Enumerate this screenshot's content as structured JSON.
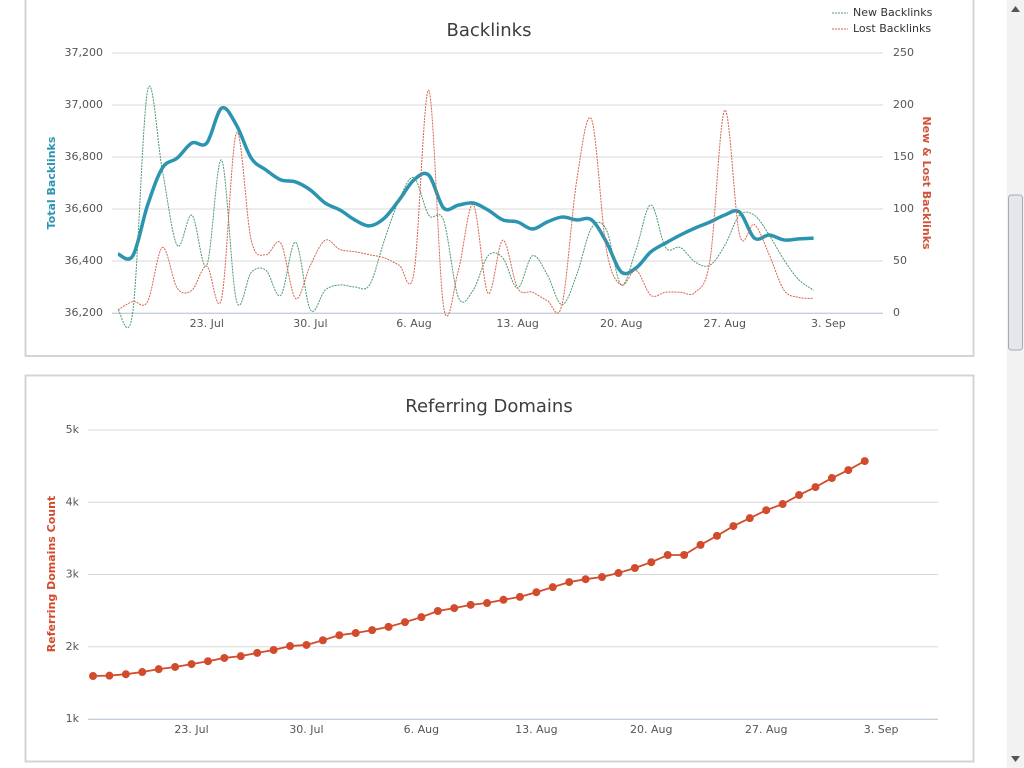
{
  "chart_data": [
    {
      "type": "line",
      "title": "Backlinks",
      "ylabel": "Total Backlinks",
      "y2label": "New & Lost Backlinks",
      "categories": [
        null,
        null,
        null,
        null,
        null,
        null,
        "23. Jul",
        null,
        null,
        null,
        null,
        null,
        null,
        "30. Jul",
        null,
        null,
        null,
        null,
        null,
        null,
        "6. Aug",
        null,
        null,
        null,
        null,
        null,
        null,
        "13. Aug",
        null,
        null,
        null,
        null,
        null,
        null,
        "20. Aug",
        null,
        null,
        null,
        null,
        null,
        null,
        "27. Aug",
        null,
        null,
        null,
        null,
        null,
        null,
        "3. Sep"
      ],
      "ylim": [
        36200,
        37200
      ],
      "yticks": [
        {
          "value": 36200,
          "label": "36,200"
        },
        {
          "value": 36400,
          "label": "36,400"
        },
        {
          "value": 36600,
          "label": "36,600"
        },
        {
          "value": 36800,
          "label": "36,800"
        },
        {
          "value": 37000,
          "label": "37,000"
        },
        {
          "value": 37200,
          "label": "37,200"
        }
      ],
      "y2lim": [
        0,
        250
      ],
      "y2ticks": [
        0,
        50,
        100,
        150,
        200,
        250
      ],
      "grid": true,
      "legend": "top-right",
      "series": [
        {
          "name": "Total Backlinks",
          "color": "#2b94b1",
          "values": [
            36427,
            36420,
            36615,
            36758,
            36796,
            36854,
            36854,
            36988,
            36923,
            36796,
            36750,
            36712,
            36704,
            36673,
            36623,
            36596,
            36558,
            36535,
            36565,
            36635,
            36712,
            36730,
            36604,
            36615,
            36623,
            36596,
            36558,
            36550,
            36523,
            36550,
            36569,
            36558,
            36558,
            36473,
            36358,
            36373,
            36435,
            36469,
            36500,
            36527,
            36550,
            36577,
            36588,
            36488,
            36500,
            36481,
            36485,
            36488,
            null
          ]
        },
        {
          "name": "New Backlinks",
          "color": "#4a9a6e",
          "axis": "y2",
          "values": [
            3,
            1,
            214,
            137,
            65,
            94,
            46,
            147,
            12,
            39,
            41,
            17,
            68,
            3,
            22,
            27,
            25,
            27,
            70,
            109,
            130,
            94,
            89,
            15,
            22,
            55,
            53,
            24,
            55,
            37,
            8,
            37,
            82,
            80,
            27,
            61,
            104,
            63,
            63,
            49,
            46,
            65,
            94,
            94,
            75,
            51,
            32,
            22,
            null
          ]
        },
        {
          "name": "Lost Backlinks",
          "color": "#d9634a",
          "axis": "y2",
          "values": [
            3,
            11,
            11,
            63,
            24,
            22,
            45,
            14,
            173,
            70,
            56,
            67,
            14,
            46,
            70,
            61,
            59,
            56,
            53,
            46,
            39,
            214,
            6,
            41,
            104,
            19,
            70,
            24,
            20,
            12,
            8,
            128,
            186,
            61,
            27,
            41,
            17,
            20,
            20,
            20,
            51,
            195,
            75,
            85,
            56,
            22,
            15,
            14,
            null
          ]
        }
      ]
    },
    {
      "type": "line",
      "title": "Referring Domains",
      "ylabel": "Referring Domains Count",
      "color": "#d24b2c",
      "markers": true,
      "categories": [
        null,
        null,
        null,
        null,
        null,
        null,
        "23. Jul",
        null,
        null,
        null,
        null,
        null,
        null,
        "30. Jul",
        null,
        null,
        null,
        null,
        null,
        null,
        "6. Aug",
        null,
        null,
        null,
        null,
        null,
        null,
        "13. Aug",
        null,
        null,
        null,
        null,
        null,
        null,
        "20. Aug",
        null,
        null,
        null,
        null,
        null,
        null,
        "27. Aug",
        null,
        null,
        null,
        null,
        null,
        null,
        "3. Sep"
      ],
      "ylim": [
        1000,
        5000
      ],
      "yticks": [
        {
          "value": 1000,
          "label": "1k"
        },
        {
          "value": 2000,
          "label": "2k"
        },
        {
          "value": 3000,
          "label": "3k"
        },
        {
          "value": 4000,
          "label": "4k"
        },
        {
          "value": 5000,
          "label": "5k"
        }
      ],
      "grid": true,
      "values": [
        1595,
        1600,
        1620,
        1650,
        1690,
        1720,
        1760,
        1800,
        1845,
        1870,
        1915,
        1955,
        2010,
        2025,
        2090,
        2160,
        2190,
        2230,
        2275,
        2340,
        2410,
        2495,
        2535,
        2580,
        2605,
        2650,
        2690,
        2755,
        2825,
        2895,
        2935,
        2965,
        3020,
        3090,
        3170,
        3270,
        3270,
        3410,
        3535,
        3670,
        3780,
        3890,
        3975,
        4100,
        4210,
        4335,
        4445,
        4570,
        null
      ]
    }
  ]
}
